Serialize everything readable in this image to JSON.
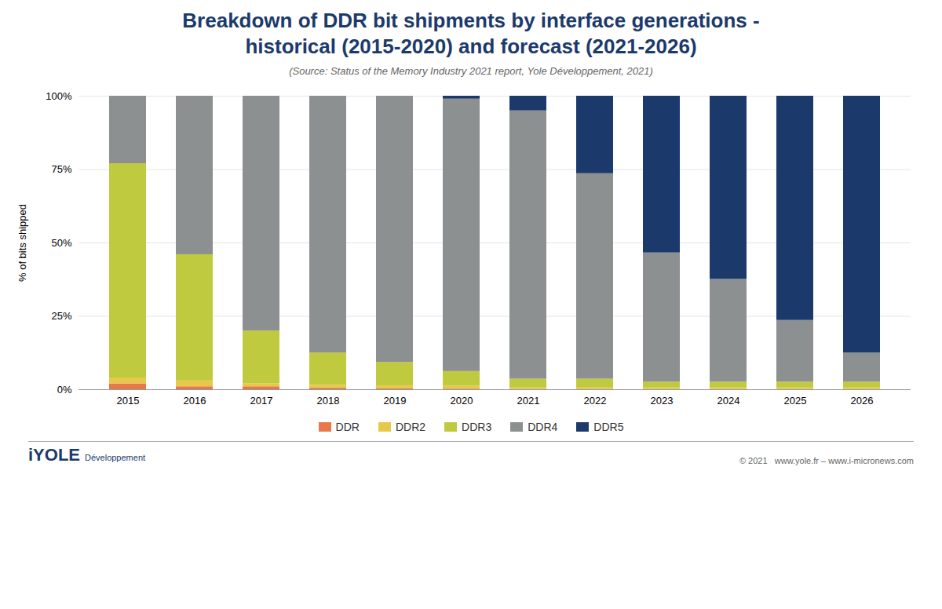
{
  "chart_data": {
    "type": "bar",
    "stacked": true,
    "title": "Breakdown of DDR bit shipments by interface generations - historical (2015-2020) and forecast (2021-2026)",
    "subtitle": "(Source: Status of the Memory Industry 2021 report, Yole Développement, 2021)",
    "y_label": "% of bits shipped",
    "categories": [
      "2015",
      "2016",
      "2017",
      "2018",
      "2019",
      "2020",
      "2021",
      "2022",
      "2023",
      "2024",
      "2025",
      "2026"
    ],
    "series": [
      {
        "name": "DDR",
        "color": "#E8784A",
        "values": [
          2,
          1,
          1,
          0.5,
          0.3,
          0.2,
          0.1,
          0.1,
          0.1,
          0.1,
          0.1,
          0.1
        ]
      },
      {
        "name": "DDR2",
        "color": "#E8C84A",
        "values": [
          2,
          2,
          1,
          1,
          1,
          1,
          0.5,
          0.5,
          0.5,
          0.5,
          0.5,
          0.5
        ]
      },
      {
        "name": "DDR3",
        "color": "#BFCA3E",
        "values": [
          73,
          43,
          18,
          11,
          8,
          5,
          3,
          3,
          2,
          2,
          2,
          2
        ]
      },
      {
        "name": "DDR4",
        "color": "#8C9090",
        "values": [
          23,
          54,
          80,
          87.5,
          90.7,
          92.8,
          91.4,
          70,
          44,
          35,
          21,
          9.9
        ]
      },
      {
        "name": "DDR5",
        "color": "#1B3A6B",
        "values": [
          0,
          0,
          0,
          0,
          0,
          1,
          5,
          26.4,
          53.4,
          62.4,
          76.4,
          87.5
        ]
      }
    ],
    "ylim": [
      0,
      100
    ],
    "yticks": [
      {
        "value": 0,
        "label": "0%"
      },
      {
        "value": 25,
        "label": "25%"
      },
      {
        "value": 50,
        "label": "50%"
      },
      {
        "value": 75,
        "label": "75%"
      },
      {
        "value": 100,
        "label": "100%"
      }
    ],
    "grid": true,
    "legend": "bottom",
    "annotations": [
      "i",
      "YOLE",
      "Développement",
      "© 2021   www.yole.fr – www.i-micronews.com"
    ]
  }
}
